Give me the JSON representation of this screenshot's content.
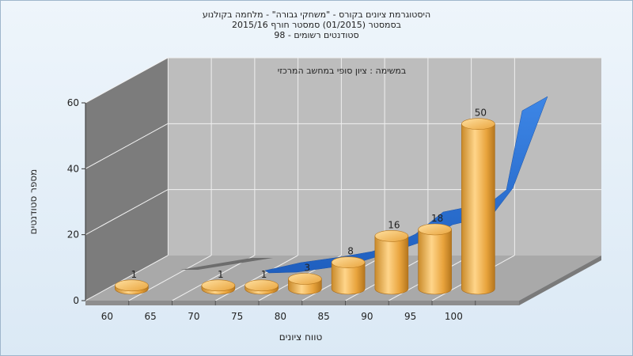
{
  "chart_data": {
    "type": "bar",
    "title_lines": [
      "היסטוגרמת ציונים בקורס - \"משחקי גבורה\" - מלחמה בקולנוע",
      "בסמסטר  (01/2015)  סמסטר חורף 2015/16",
      "סטודנטים רשומים - 98"
    ],
    "subtitle": "במשימה : ציון סופי במחשב המרכזי",
    "xlabel": "טווח ציונים",
    "ylabel": "מספר סטודנטים",
    "x_ticks": [
      "60",
      "65",
      "70",
      "75",
      "80",
      "85",
      "90",
      "95",
      "100"
    ],
    "y_ticks": [
      "0",
      "20",
      "40",
      "60"
    ],
    "ylim": [
      0,
      60
    ],
    "categories": [
      "60",
      "70",
      "75",
      "80",
      "85",
      "90",
      "95",
      "100"
    ],
    "values": [
      1,
      1,
      1,
      3,
      8,
      16,
      18,
      50
    ],
    "series": [
      {
        "values": [
          1,
          1,
          1,
          3,
          8,
          16,
          18,
          50
        ],
        "color": "#e8a33c"
      },
      {
        "type": "area",
        "color": "#2a6fcf"
      }
    ],
    "grid": true,
    "colors": {
      "bar": "#e8a33c",
      "area": "#2a6fcf",
      "wall": "#bdbdbd",
      "floor": "#a8a8a8"
    }
  }
}
